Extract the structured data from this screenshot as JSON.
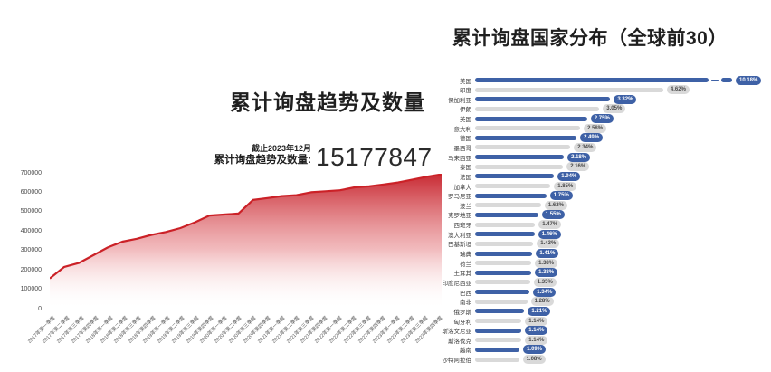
{
  "page": {
    "background": "#ffffff"
  },
  "left_chart": {
    "title": "累计询盘趋势及数量",
    "asof": "截止2023年12月",
    "stat_label": "累计询盘趋势及数量:",
    "stat_value": "15177847",
    "line_color": "#cb2127"
  },
  "right_chart": {
    "title": "累计询盘国家分布（全球前30）",
    "bar_color_primary": "#3e61a6",
    "bar_color_secondary": "#d9d9d9"
  },
  "chart_data": [
    {
      "type": "area",
      "title": "累计询盘趋势及数量",
      "xlabel": "",
      "ylabel": "",
      "ylim": [
        0,
        700000
      ],
      "y_ticks": [
        0,
        100000,
        200000,
        300000,
        400000,
        500000,
        600000,
        700000
      ],
      "grid": false,
      "legend": false,
      "line_color": "#cb2127",
      "fill_gradient": [
        "#c6222b",
        "#e98f93",
        "#ffffff"
      ],
      "categories": [
        "2017年第一季度",
        "2017年第二季度",
        "2017年第三季度",
        "2017年第四季度",
        "2018年第一季度",
        "2018年第二季度",
        "2018年第三季度",
        "2018年第四季度",
        "2019年第一季度",
        "2019年第二季度",
        "2019年第三季度",
        "2019年第四季度",
        "2020年第一季度",
        "2020年第二季度",
        "2020年第三季度",
        "2020年第四季度",
        "2021年第一季度",
        "2021年第二季度",
        "2021年第三季度",
        "2021年第四季度",
        "2022年第一季度",
        "2022年第二季度",
        "2022年第三季度",
        "2022年第四季度",
        "2023年第一季度",
        "2023年第二季度",
        "2023年第三季度",
        "2023年第四季度"
      ],
      "values": [
        160000,
        220000,
        240000,
        280000,
        320000,
        350000,
        365000,
        385000,
        400000,
        420000,
        450000,
        485000,
        490000,
        495000,
        565000,
        575000,
        585000,
        590000,
        605000,
        610000,
        615000,
        630000,
        635000,
        645000,
        655000,
        670000,
        685000,
        697000
      ]
    },
    {
      "type": "bar",
      "orientation": "horizontal",
      "title": "累计询盘国家分布（全球前30）",
      "axis_break_on_first": true,
      "categories": [
        "美国",
        "印度",
        "保加利亚",
        "伊朗",
        "英国",
        "意大利",
        "德国",
        "墨西哥",
        "马来西亚",
        "泰国",
        "法国",
        "加拿大",
        "罗马尼亚",
        "波兰",
        "克罗地亚",
        "西班牙",
        "澳大利亚",
        "巴基斯坦",
        "瑞典",
        "荷兰",
        "土耳其",
        "印度尼西亚",
        "巴西",
        "南非",
        "俄罗斯",
        "匈牙利",
        "斯洛文尼亚",
        "斯洛伐克",
        "越南",
        "沙特阿拉伯"
      ],
      "values": [
        10.18,
        4.62,
        3.32,
        3.05,
        2.75,
        2.58,
        2.49,
        2.34,
        2.18,
        2.16,
        1.94,
        1.85,
        1.75,
        1.62,
        1.55,
        1.47,
        1.46,
        1.43,
        1.41,
        1.38,
        1.38,
        1.35,
        1.34,
        1.28,
        1.21,
        1.14,
        1.14,
        1.14,
        1.09,
        1.08
      ],
      "labels": [
        "10.18%",
        "4.62%",
        "3.32%",
        "3.05%",
        "2.75%",
        "2.58%",
        "2.49%",
        "2.34%",
        "2.18%",
        "2.16%",
        "1.94%",
        "1.85%",
        "1.75%",
        "1.62%",
        "1.55%",
        "1.47%",
        "1.46%",
        "1.43%",
        "1.41%",
        "1.38%",
        "1.38%",
        "1.35%",
        "1.34%",
        "1.28%",
        "1.21%",
        "1.14%",
        "1.14%",
        "1.14%",
        "1.09%",
        "1.08%"
      ]
    }
  ]
}
